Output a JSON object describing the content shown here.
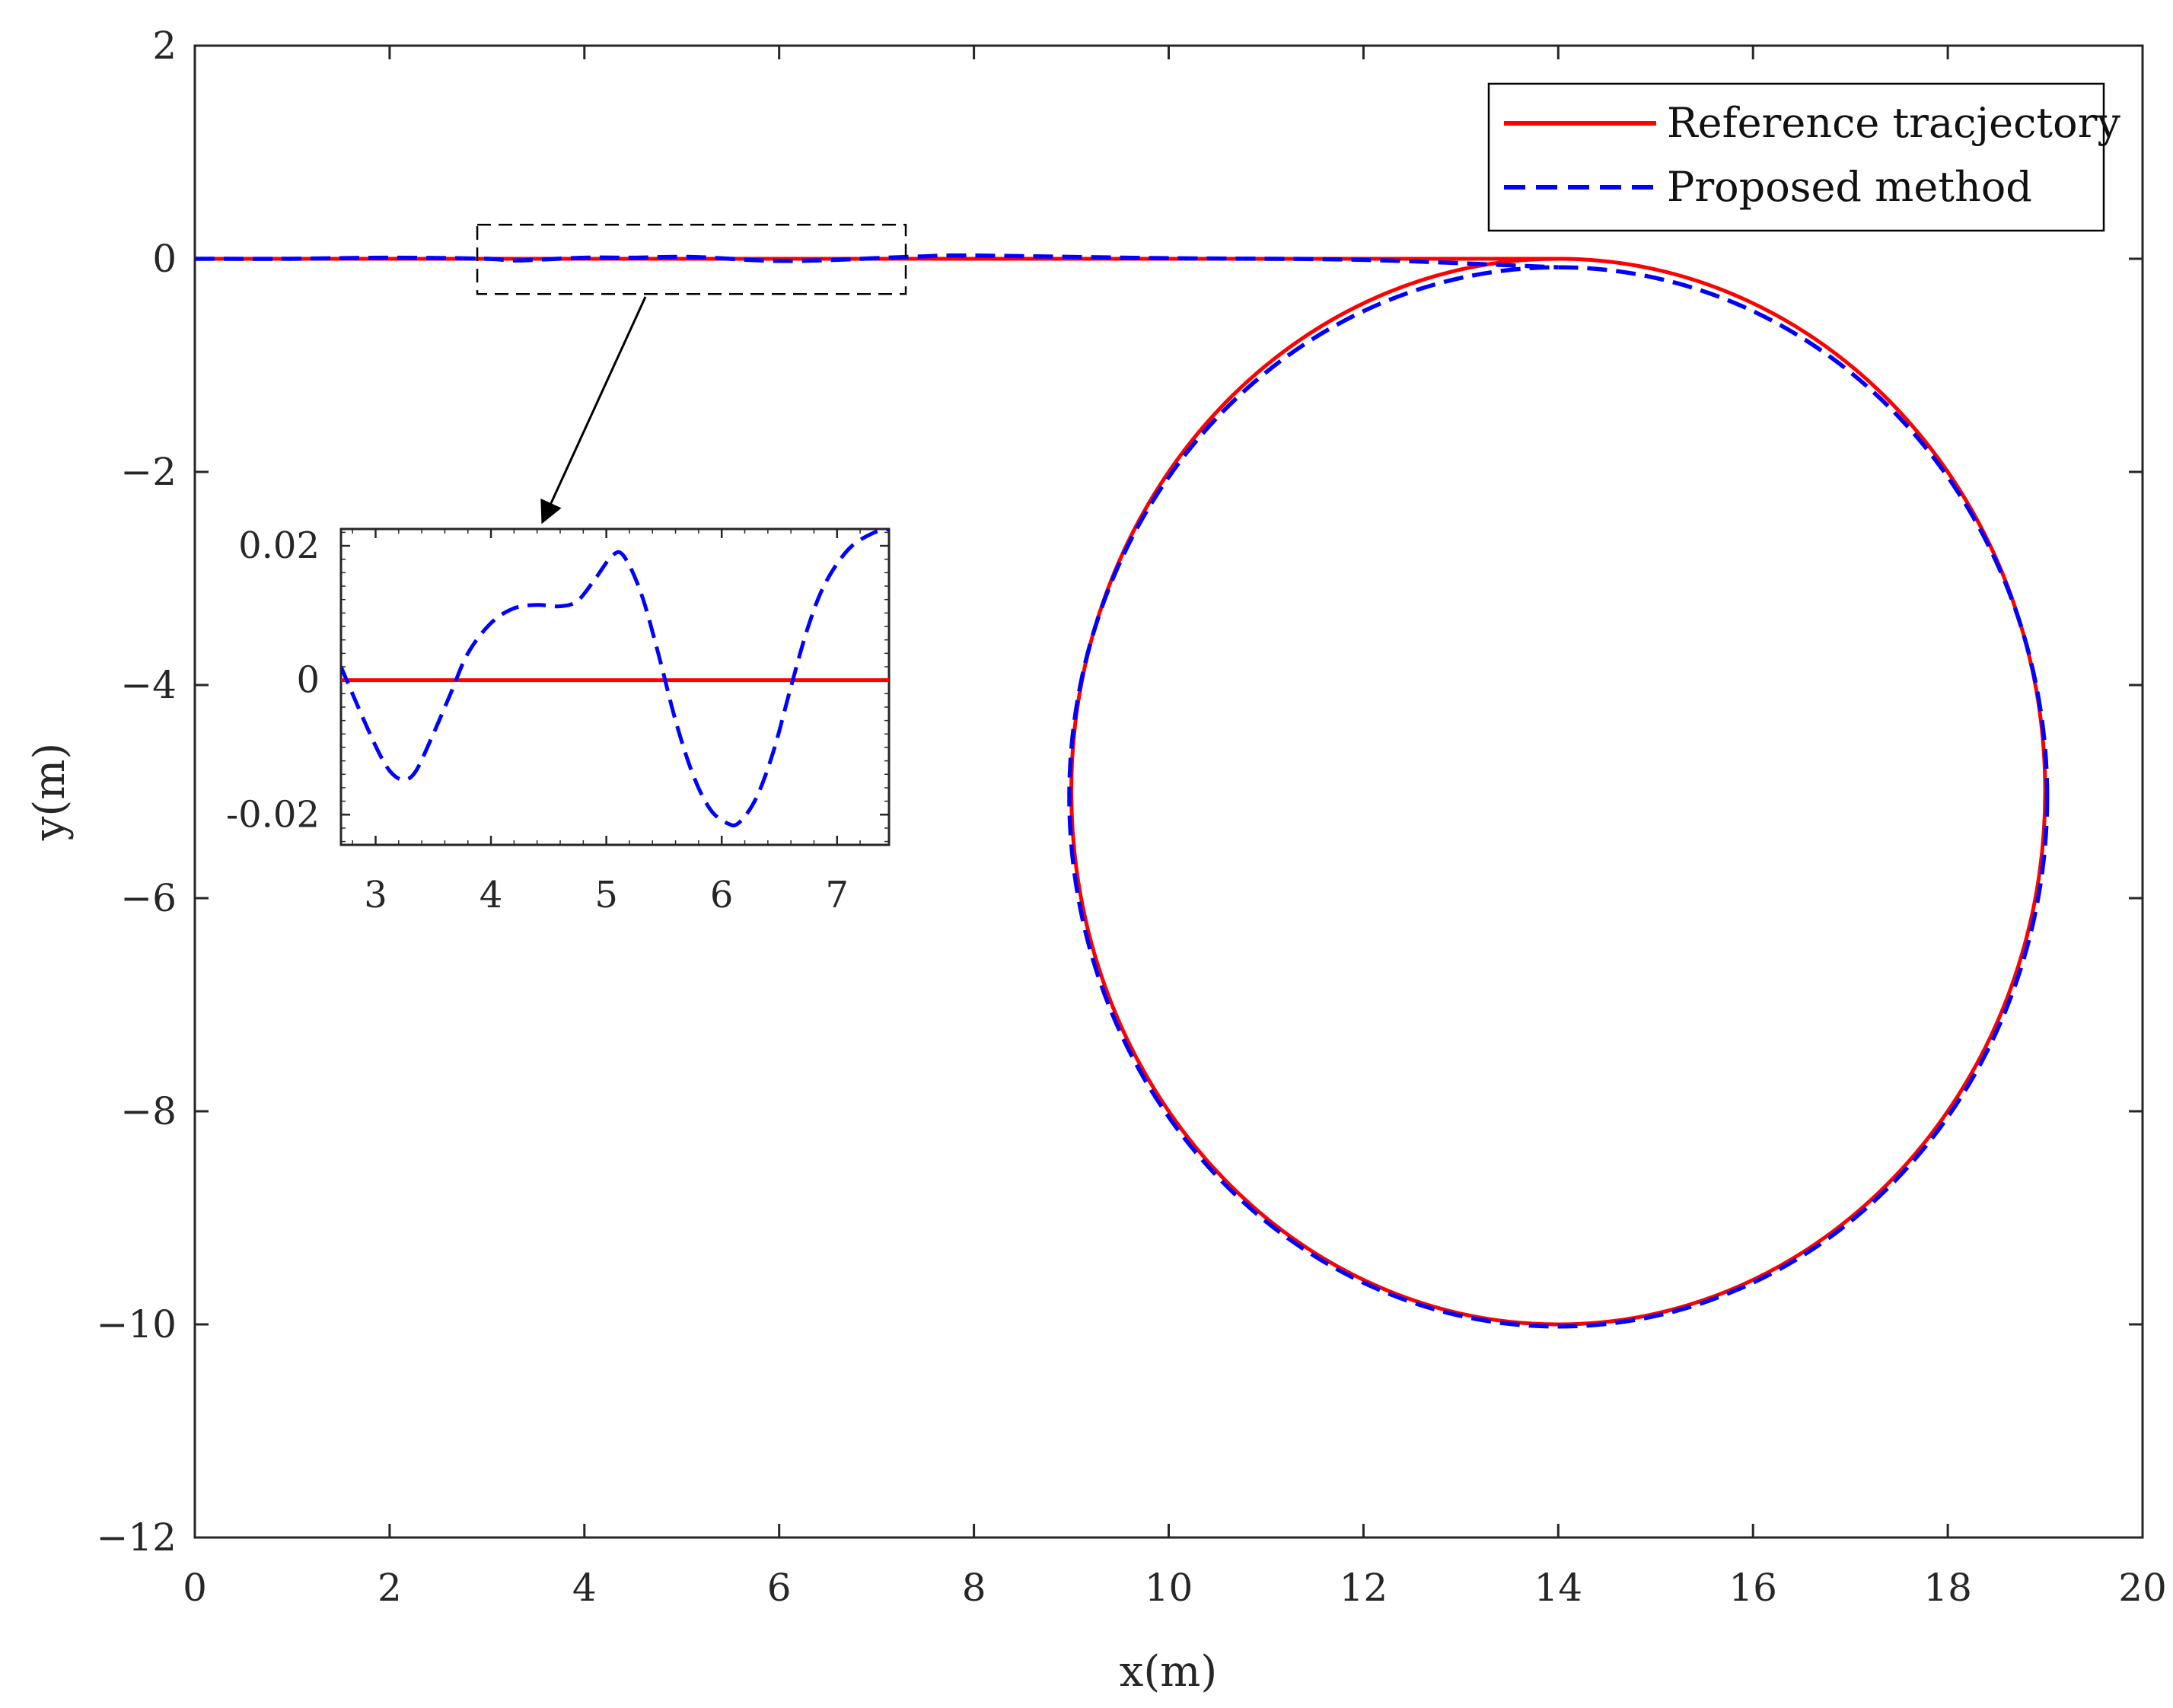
{
  "chart_data": {
    "type": "line",
    "title": "",
    "xlabel": "x(m)",
    "ylabel": "y(m)",
    "xlim": [
      0,
      20
    ],
    "ylim": [
      -12,
      2
    ],
    "xticks": [
      0,
      2,
      4,
      6,
      8,
      10,
      12,
      14,
      16,
      18,
      20
    ],
    "yticks": [
      2,
      0,
      -2,
      -4,
      -6,
      -8,
      -10,
      -12
    ],
    "xtick_labels": [
      "0",
      "2",
      "4",
      "6",
      "8",
      "10",
      "12",
      "14",
      "16",
      "18",
      "20"
    ],
    "ytick_labels": [
      "2",
      "0",
      "−2",
      "−4",
      "−6",
      "−8",
      "−10",
      "−12"
    ],
    "grid": false,
    "legend": "top-right",
    "series": [
      {
        "name": "Reference tracjectory",
        "color": "#ff0000",
        "style": "solid",
        "path": "straight line y=0 from x=0 to x=14, then circle of radius 5 centered at (14, -5)",
        "points": [
          [
            0,
            0
          ],
          [
            2,
            0
          ],
          [
            4,
            0
          ],
          [
            6,
            0
          ],
          [
            8,
            0
          ],
          [
            10,
            0
          ],
          [
            12,
            0
          ],
          [
            14,
            0
          ],
          [
            17.5,
            -1.46
          ],
          [
            19,
            -5
          ],
          [
            17.5,
            -8.54
          ],
          [
            14,
            -10
          ],
          [
            10.5,
            -8.54
          ],
          [
            9,
            -5
          ],
          [
            10.5,
            -1.46
          ],
          [
            14,
            0
          ]
        ]
      },
      {
        "name": "Proposed method",
        "color": "#0000ff",
        "style": "dashed",
        "points": [
          [
            0,
            0
          ],
          [
            1,
            0
          ],
          [
            2,
            0.01
          ],
          [
            3,
            0
          ],
          [
            3.3,
            -0.015
          ],
          [
            4,
            0.01
          ],
          [
            4.5,
            0.01
          ],
          [
            5.1,
            0.017
          ],
          [
            6.1,
            -0.02
          ],
          [
            7.4,
            0.02
          ],
          [
            8,
            0.03
          ],
          [
            10,
            0.005
          ],
          [
            12,
            -0.01
          ],
          [
            14,
            -0.08
          ],
          [
            17.5,
            -1.46
          ],
          [
            19.02,
            -5
          ],
          [
            17.5,
            -8.54
          ],
          [
            14,
            -10.02
          ],
          [
            10.5,
            -8.54
          ],
          [
            9,
            -5
          ],
          [
            10.5,
            -1.46
          ],
          [
            14,
            -0.08
          ]
        ]
      }
    ],
    "zoom_box": {
      "xlim": [
        2.9,
        7.3
      ],
      "ylim": [
        -0.33,
        0.32
      ]
    },
    "inset": {
      "xlim": [
        2.7,
        7.45
      ],
      "ylim": [
        -0.0245,
        0.0225
      ],
      "xticks": [
        3,
        4,
        5,
        6,
        7
      ],
      "yticks": [
        0.02,
        0,
        -0.02
      ],
      "xtick_labels": [
        "3",
        "4",
        "5",
        "6",
        "7"
      ],
      "ytick_labels": [
        "0.02",
        "0",
        "-0.02"
      ],
      "series": [
        {
          "name": "Reference tracjectory",
          "color": "#ff0000",
          "style": "solid",
          "points": [
            [
              2.7,
              0
            ],
            [
              7.45,
              0
            ]
          ]
        },
        {
          "name": "Proposed method",
          "color": "#0000ff",
          "style": "dashed",
          "points": [
            [
              2.7,
              0.002
            ],
            [
              2.9,
              -0.006
            ],
            [
              3.05,
              -0.0115
            ],
            [
              3.15,
              -0.014
            ],
            [
              3.25,
              -0.0148
            ],
            [
              3.35,
              -0.0135
            ],
            [
              3.5,
              -0.008
            ],
            [
              3.65,
              -0.002
            ],
            [
              3.8,
              0.004
            ],
            [
              4.0,
              0.0085
            ],
            [
              4.2,
              0.0107
            ],
            [
              4.4,
              0.0112
            ],
            [
              4.6,
              0.011
            ],
            [
              4.75,
              0.0118
            ],
            [
              4.9,
              0.015
            ],
            [
              5.05,
              0.0185
            ],
            [
              5.15,
              0.0185
            ],
            [
              5.3,
              0.013
            ],
            [
              5.45,
              0.004
            ],
            [
              5.6,
              -0.006
            ],
            [
              5.75,
              -0.014
            ],
            [
              5.9,
              -0.0192
            ],
            [
              6.05,
              -0.0213
            ],
            [
              6.15,
              -0.0212
            ],
            [
              6.3,
              -0.0175
            ],
            [
              6.45,
              -0.0105
            ],
            [
              6.6,
              -0.001
            ],
            [
              6.75,
              0.008
            ],
            [
              6.9,
              0.0145
            ],
            [
              7.1,
              0.0195
            ],
            [
              7.3,
              0.0218
            ],
            [
              7.45,
              0.0225
            ]
          ]
        }
      ]
    }
  }
}
